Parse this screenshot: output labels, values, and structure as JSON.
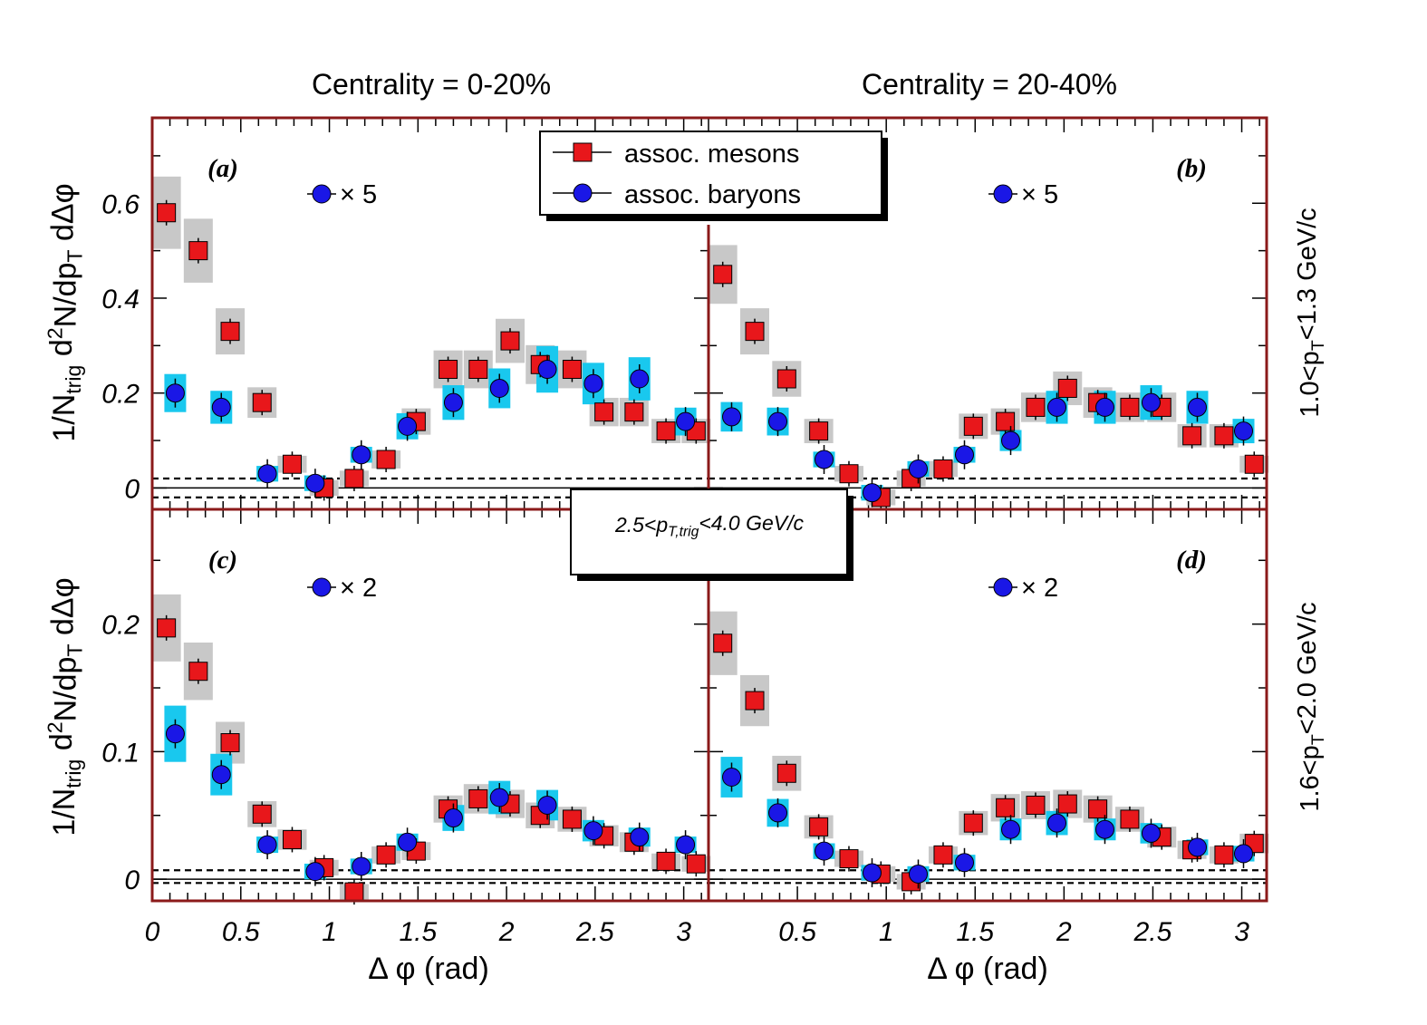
{
  "header": {
    "col_titles": [
      "Centrality = 0-20%",
      "Centrality = 20-40%"
    ],
    "row_labels": [
      "1.0<p_T<1.3 GeV/c",
      "1.6<p_T<2.0 GeV/c"
    ]
  },
  "axes": {
    "xlabel": "Δ φ (rad)",
    "ylabel": "1/N_trig d²N/dp_T dΔφ",
    "x_ticks_left": [
      "0",
      "0.5",
      "1",
      "1.5",
      "2",
      "2.5",
      "3"
    ],
    "x_ticks_right": [
      "0.5",
      "1",
      "1.5",
      "2",
      "2.5",
      "3"
    ],
    "y_ticks_top": [
      "0",
      "0.2",
      "0.4",
      "0.6"
    ],
    "y_ticks_bottom": [
      "0",
      "0.1",
      "0.2"
    ]
  },
  "legend": {
    "mesons": "assoc. mesons",
    "baryons": "assoc. baryons"
  },
  "trigger_label": "2.5<p_T,trig<4.0 GeV/c",
  "colors": {
    "meson": "#e8171b",
    "baryon": "#1a17e6",
    "meson_sys": "#c8c8c8",
    "baryon_sys": "#19c8ee",
    "frame": "#8b1a1a"
  },
  "chart_data": [
    {
      "type": "scatter",
      "panel": "(a)",
      "scale_note": "× 5",
      "xlim": [
        0,
        3.14
      ],
      "ylim": [
        -0.045,
        0.78
      ],
      "zyam_band": [
        -0.02,
        0.02
      ],
      "series": [
        {
          "name": "assoc. mesons",
          "x": [
            0.08,
            0.26,
            0.44,
            0.62,
            0.79,
            0.97,
            1.14,
            1.32,
            1.49,
            1.67,
            1.84,
            2.02,
            2.19,
            2.37,
            2.55,
            2.72,
            2.9,
            3.07
          ],
          "y": [
            0.58,
            0.5,
            0.33,
            0.18,
            0.05,
            0.0,
            0.02,
            0.06,
            0.14,
            0.25,
            0.25,
            0.31,
            0.26,
            0.25,
            0.16,
            0.16,
            0.12,
            0.12
          ]
        },
        {
          "name": "assoc. baryons",
          "x": [
            0.13,
            0.39,
            0.65,
            0.92,
            1.18,
            1.44,
            1.7,
            1.96,
            2.23,
            2.49,
            2.75,
            3.01
          ],
          "y": [
            0.2,
            0.17,
            0.03,
            0.01,
            0.07,
            0.13,
            0.18,
            0.21,
            0.25,
            0.22,
            0.23,
            0.14
          ]
        }
      ]
    },
    {
      "type": "scatter",
      "panel": "(b)",
      "scale_note": "× 5",
      "xlim": [
        0,
        3.14
      ],
      "ylim": [
        -0.045,
        0.78
      ],
      "zyam_band": [
        -0.02,
        0.02
      ],
      "series": [
        {
          "name": "assoc. mesons",
          "x": [
            0.08,
            0.26,
            0.44,
            0.62,
            0.79,
            0.97,
            1.14,
            1.32,
            1.49,
            1.67,
            1.84,
            2.02,
            2.19,
            2.37,
            2.55,
            2.72,
            2.9,
            3.07
          ],
          "y": [
            0.45,
            0.33,
            0.23,
            0.12,
            0.03,
            -0.02,
            0.02,
            0.04,
            0.13,
            0.14,
            0.17,
            0.21,
            0.18,
            0.17,
            0.17,
            0.11,
            0.11,
            0.05
          ]
        },
        {
          "name": "assoc. baryons",
          "x": [
            0.13,
            0.39,
            0.65,
            0.92,
            1.18,
            1.44,
            1.7,
            1.96,
            2.23,
            2.49,
            2.75,
            3.01
          ],
          "y": [
            0.15,
            0.14,
            0.06,
            -0.01,
            0.04,
            0.07,
            0.1,
            0.17,
            0.17,
            0.18,
            0.17,
            0.12
          ]
        }
      ]
    },
    {
      "type": "scatter",
      "panel": "(c)",
      "scale_note": "× 2",
      "xlim": [
        0,
        3.14
      ],
      "ylim": [
        -0.017,
        0.29
      ],
      "zyam_band": [
        -0.003,
        0.007
      ],
      "series": [
        {
          "name": "assoc. mesons",
          "x": [
            0.08,
            0.26,
            0.44,
            0.62,
            0.79,
            0.97,
            1.14,
            1.32,
            1.49,
            1.67,
            1.84,
            2.02,
            2.19,
            2.37,
            2.55,
            2.72,
            2.9,
            3.07
          ],
          "y": [
            0.197,
            0.163,
            0.107,
            0.051,
            0.031,
            0.009,
            -0.01,
            0.019,
            0.022,
            0.055,
            0.063,
            0.059,
            0.05,
            0.047,
            0.034,
            0.029,
            0.014,
            0.012
          ]
        },
        {
          "name": "assoc. baryons",
          "x": [
            0.13,
            0.39,
            0.65,
            0.92,
            1.18,
            1.44,
            1.7,
            1.96,
            2.23,
            2.49,
            2.75,
            3.01
          ],
          "y": [
            0.114,
            0.082,
            0.027,
            0.006,
            0.01,
            0.029,
            0.048,
            0.064,
            0.058,
            0.038,
            0.033,
            0.027
          ]
        }
      ]
    },
    {
      "type": "scatter",
      "panel": "(d)",
      "scale_note": "× 2",
      "xlim": [
        0,
        3.14
      ],
      "ylim": [
        -0.017,
        0.29
      ],
      "zyam_band": [
        -0.003,
        0.007
      ],
      "series": [
        {
          "name": "assoc. mesons",
          "x": [
            0.08,
            0.26,
            0.44,
            0.62,
            0.79,
            0.97,
            1.14,
            1.32,
            1.49,
            1.67,
            1.84,
            2.02,
            2.19,
            2.37,
            2.55,
            2.72,
            2.9,
            3.07
          ],
          "y": [
            0.185,
            0.14,
            0.083,
            0.041,
            0.016,
            0.004,
            -0.002,
            0.019,
            0.044,
            0.056,
            0.058,
            0.059,
            0.055,
            0.047,
            0.033,
            0.023,
            0.019,
            0.028
          ]
        },
        {
          "name": "assoc. baryons",
          "x": [
            0.13,
            0.39,
            0.65,
            0.92,
            1.18,
            1.44,
            1.7,
            1.96,
            2.23,
            2.49,
            2.75,
            3.01
          ],
          "y": [
            0.08,
            0.052,
            0.022,
            0.005,
            0.004,
            0.013,
            0.039,
            0.044,
            0.039,
            0.036,
            0.025,
            0.02
          ]
        }
      ]
    }
  ]
}
